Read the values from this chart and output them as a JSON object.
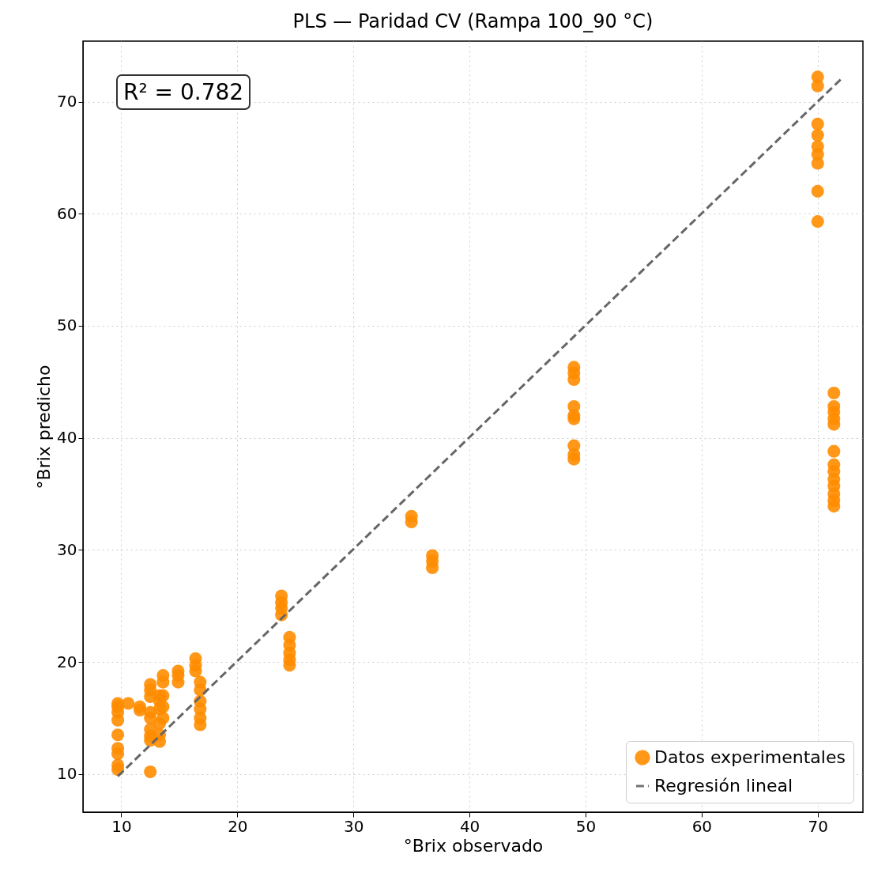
{
  "chart_data": {
    "type": "scatter",
    "title": "PLS — Paridad CV (Rampa 100_90 °C)",
    "xlabel": "°Brix observado",
    "ylabel": "°Brix predicho",
    "xlim": [
      6.7,
      73.9
    ],
    "ylim": [
      6.6,
      75.4
    ],
    "xticks": [
      10,
      20,
      30,
      40,
      50,
      60,
      70
    ],
    "yticks": [
      10,
      20,
      30,
      40,
      50,
      60,
      70
    ],
    "grid": true,
    "legend": "bottom right",
    "annotations": [
      "R² = 0.782"
    ],
    "series": [
      {
        "name": "Datos experimentales",
        "marker": "circle",
        "color": "#ff8c00",
        "x": [
          9.7,
          9.7,
          9.7,
          9.7,
          9.7,
          9.7,
          9.7,
          9.7,
          9.7,
          10.6,
          11.6,
          11.6,
          12.5,
          12.5,
          12.5,
          12.5,
          12.5,
          12.5,
          12.5,
          12.5,
          12.5,
          13.3,
          13.3,
          13.3,
          13.3,
          13.3,
          13.3,
          13.6,
          13.6,
          13.6,
          13.6,
          13.6,
          14.9,
          14.9,
          14.9,
          16.4,
          16.4,
          16.4,
          16.8,
          16.8,
          16.8,
          16.8,
          16.8,
          16.8,
          23.8,
          23.8,
          23.8,
          23.8,
          24.5,
          24.5,
          24.5,
          24.5,
          24.5,
          35.0,
          35.0,
          36.8,
          36.8,
          36.8,
          49.0,
          49.0,
          49.0,
          49.0,
          49.0,
          49.0,
          49.0,
          49.0,
          49.0,
          70.0,
          70.0,
          70.0,
          70.0,
          70.0,
          70.0,
          70.0,
          70.0,
          70.0,
          71.4,
          71.4,
          71.4,
          71.4,
          71.4,
          71.4,
          71.4,
          71.4,
          71.4,
          71.4,
          71.4,
          71.4,
          71.4
        ],
        "values": [
          16.3,
          16.0,
          15.5,
          14.8,
          13.5,
          12.3,
          11.8,
          10.8,
          10.4,
          16.3,
          16.0,
          15.7,
          18.0,
          17.5,
          16.9,
          15.5,
          15.0,
          14.0,
          13.4,
          13.0,
          10.2,
          17.0,
          16.5,
          15.8,
          14.5,
          13.5,
          12.9,
          18.8,
          18.2,
          17.0,
          16.0,
          15.0,
          19.2,
          18.8,
          18.2,
          20.3,
          19.7,
          19.2,
          18.2,
          17.5,
          16.5,
          15.8,
          15.0,
          14.4,
          25.9,
          25.3,
          24.8,
          24.2,
          22.2,
          21.5,
          20.8,
          20.2,
          19.7,
          33.0,
          32.5,
          29.5,
          29.0,
          28.4,
          46.3,
          45.8,
          45.2,
          42.8,
          42.0,
          41.7,
          39.3,
          38.5,
          38.1,
          72.2,
          71.4,
          68.0,
          67.0,
          66.0,
          65.3,
          64.5,
          62.0,
          59.3,
          44.0,
          42.8,
          42.3,
          41.7,
          41.2,
          38.8,
          37.6,
          37.0,
          36.3,
          35.7,
          35.0,
          34.4,
          33.9
        ]
      },
      {
        "name": "Regresión lineal",
        "type": "line",
        "color": "#666666",
        "line_style": "dashed",
        "x": [
          9.7,
          72.2
        ],
        "values": [
          9.8,
          72.2
        ]
      }
    ]
  }
}
